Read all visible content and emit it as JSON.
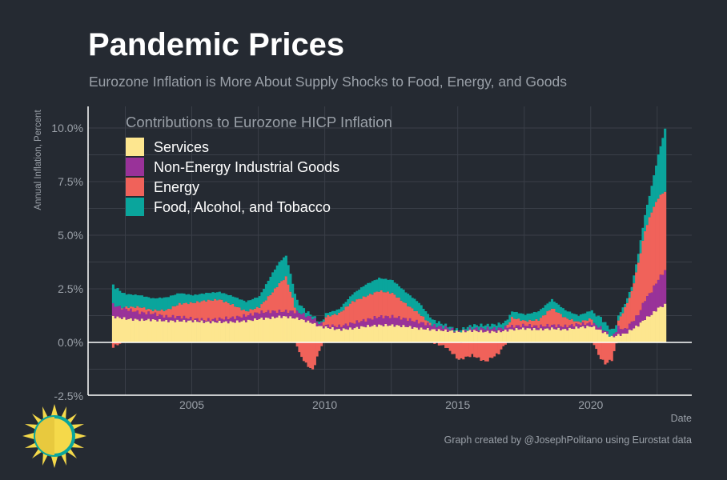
{
  "title": "Pandemic Prices",
  "subtitle": "Eurozone Inflation is More About Supply Shocks to Food, Energy, and Goods",
  "caption": "Graph created by @JosephPolitano using Eurostat data",
  "logo_icon": "sun-icon",
  "colors": {
    "background": "#252a32",
    "grid": "#3a3f48",
    "axis": "#ffffff",
    "text_muted": "#9aa0a8",
    "services": "#fde68f",
    "goods": "#993299",
    "energy": "#f0625a",
    "food": "#0aa59c"
  },
  "chart_data": {
    "type": "bar",
    "stacked": true,
    "frequency": "monthly",
    "xlabel": "Date",
    "ylabel": "Annual Inflation, Percent",
    "ylim": [
      -2.5,
      11
    ],
    "y_ticks": [
      "-2.5%",
      "0.0%",
      "2.5%",
      "5.0%",
      "7.5%",
      "10.0%"
    ],
    "y_tick_values": [
      -2.5,
      0,
      2.5,
      5,
      7.5,
      10
    ],
    "x_ticks": [
      "2005",
      "2010",
      "2015",
      "2020"
    ],
    "x_tick_values": [
      2005,
      2010,
      2015,
      2020
    ],
    "x_range": [
      2001.1,
      2023.8
    ],
    "grid": true,
    "legend": {
      "title": "Contributions to Eurozone HICP Inflation",
      "position": "top-left",
      "entries": [
        "Services",
        "Non-Energy Industrial Goods",
        "Energy",
        "Food, Alcohol, and Tobacco"
      ]
    },
    "anchor_dates": [
      2002.0,
      2002.5,
      2003.0,
      2003.5,
      2004.0,
      2004.5,
      2005.0,
      2005.5,
      2006.0,
      2006.5,
      2007.0,
      2007.5,
      2008.0,
      2008.25,
      2008.5,
      2008.75,
      2009.0,
      2009.25,
      2009.5,
      2009.75,
      2010.0,
      2010.5,
      2011.0,
      2011.5,
      2012.0,
      2012.5,
      2013.0,
      2013.5,
      2014.0,
      2014.5,
      2015.0,
      2015.5,
      2016.0,
      2016.5,
      2017.0,
      2017.5,
      2018.0,
      2018.5,
      2019.0,
      2019.5,
      2020.0,
      2020.25,
      2020.5,
      2020.75,
      2021.0,
      2021.25,
      2021.5,
      2021.75,
      2022.0,
      2022.25,
      2022.5,
      2022.75
    ],
    "series": [
      {
        "name": "Services",
        "values": [
          1.2,
          1.1,
          1.05,
          1.05,
          1.0,
          1.0,
          1.0,
          0.95,
          0.95,
          0.95,
          1.0,
          1.1,
          1.15,
          1.2,
          1.2,
          1.15,
          1.1,
          1.0,
          0.9,
          0.75,
          0.7,
          0.6,
          0.65,
          0.75,
          0.8,
          0.8,
          0.75,
          0.65,
          0.6,
          0.55,
          0.5,
          0.55,
          0.5,
          0.5,
          0.6,
          0.65,
          0.6,
          0.65,
          0.6,
          0.7,
          0.75,
          0.6,
          0.45,
          0.25,
          0.35,
          0.4,
          0.6,
          0.8,
          1.1,
          1.3,
          1.6,
          1.75
        ]
      },
      {
        "name": "Non-Energy Industrial Goods",
        "values": [
          0.55,
          0.45,
          0.35,
          0.3,
          0.2,
          0.2,
          0.1,
          0.1,
          0.15,
          0.2,
          0.25,
          0.3,
          0.3,
          0.25,
          0.25,
          0.3,
          0.3,
          0.25,
          0.25,
          0.15,
          0.1,
          0.15,
          0.25,
          0.3,
          0.4,
          0.4,
          0.35,
          0.3,
          0.2,
          0.15,
          0.0,
          0.1,
          0.15,
          0.15,
          0.15,
          0.15,
          0.15,
          0.15,
          0.15,
          0.15,
          0.15,
          0.15,
          0.1,
          0.0,
          0.35,
          0.2,
          0.35,
          0.5,
          0.9,
          1.1,
          1.35,
          1.6
        ]
      },
      {
        "name": "Energy",
        "values": [
          -0.2,
          0.1,
          0.25,
          0.15,
          0.3,
          0.6,
          0.75,
          0.9,
          0.9,
          0.6,
          0.2,
          0.25,
          0.9,
          1.3,
          1.6,
          0.6,
          -0.5,
          -1.0,
          -1.3,
          -0.4,
          0.4,
          0.6,
          1.0,
          1.1,
          1.2,
          1.1,
          0.7,
          0.4,
          0.0,
          -0.2,
          -0.8,
          -0.6,
          -0.9,
          -0.5,
          0.4,
          0.2,
          0.3,
          0.8,
          0.4,
          0.1,
          0.2,
          -0.6,
          -1.0,
          -0.8,
          0.3,
          1.0,
          1.4,
          2.4,
          3.2,
          3.7,
          3.8,
          3.7
        ]
      },
      {
        "name": "Food, Alcohol, and Tobacco",
        "values": [
          0.9,
          0.6,
          0.55,
          0.55,
          0.6,
          0.5,
          0.35,
          0.35,
          0.35,
          0.4,
          0.45,
          0.5,
          0.9,
          1.0,
          1.0,
          0.7,
          0.4,
          0.2,
          0.1,
          0.05,
          0.15,
          0.2,
          0.35,
          0.55,
          0.6,
          0.6,
          0.55,
          0.5,
          0.25,
          0.1,
          0.05,
          0.15,
          0.15,
          0.2,
          0.3,
          0.3,
          0.4,
          0.4,
          0.35,
          0.3,
          0.4,
          0.5,
          0.35,
          0.3,
          0.25,
          0.2,
          0.25,
          0.45,
          0.75,
          1.2,
          2.0,
          2.9
        ]
      }
    ]
  }
}
